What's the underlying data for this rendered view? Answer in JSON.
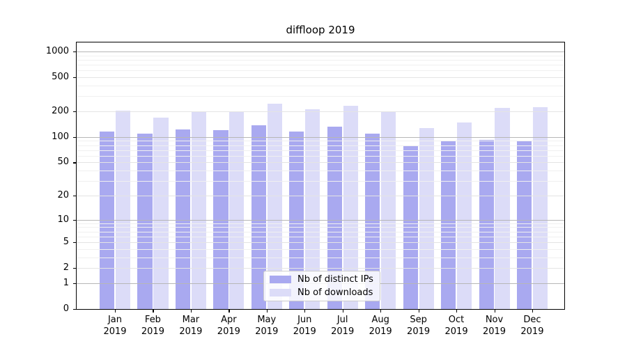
{
  "chart_data": {
    "type": "bar",
    "title": "diffloop 2019",
    "categories": [
      "Jan",
      "Feb",
      "Mar",
      "Apr",
      "May",
      "Jun",
      "Jul",
      "Aug",
      "Sep",
      "Oct",
      "Nov",
      "Dec"
    ],
    "year_label": "2019",
    "series": [
      {
        "name": "Nb of distinct IPs",
        "color": "#a9a9f0",
        "values": [
          115,
          110,
          123,
          120,
          137,
          117,
          132,
          109,
          78,
          91,
          92,
          91
        ]
      },
      {
        "name": "Nb of downloads",
        "color": "#dcdcf8",
        "values": [
          205,
          170,
          200,
          200,
          245,
          210,
          233,
          195,
          128,
          148,
          220,
          224
        ]
      }
    ],
    "yscale": "log1p",
    "yticks": [
      0,
      1,
      2,
      5,
      10,
      20,
      50,
      100,
      200,
      500,
      1000
    ],
    "minor_gridlines": [
      3,
      4,
      6,
      7,
      8,
      9,
      30,
      40,
      60,
      70,
      80,
      90,
      300,
      400,
      600,
      700,
      800,
      900
    ],
    "ylim": [
      0,
      1280
    ],
    "grid": true,
    "legend_position": "lower center",
    "axis_color": "#000000",
    "grid_major_color": "#b6b6b6",
    "grid_minor_color": "#f0f0f0"
  }
}
